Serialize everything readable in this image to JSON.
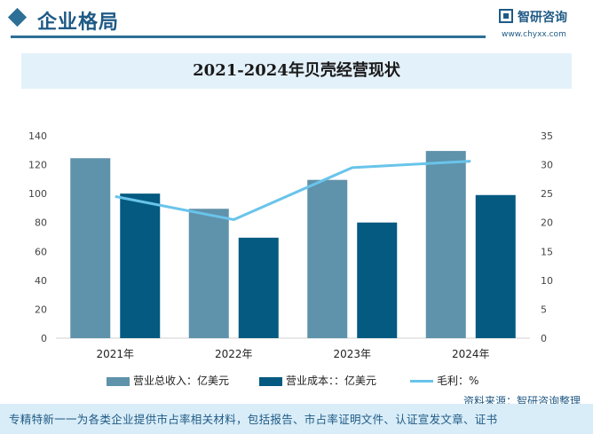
{
  "header": {
    "section_title": "企业格局",
    "logo_name": "智研咨询",
    "logo_url": "www.chyxx.com"
  },
  "chart_data": {
    "type": "bar",
    "title": "2021-2024年贝壳经营现状",
    "categories": [
      "2021年",
      "2022年",
      "2023年",
      "2024年"
    ],
    "series": [
      {
        "name": "营业总收入：亿美元",
        "kind": "bar",
        "axis": "left",
        "values": [
          124.5,
          89.5,
          109.5,
          129.5
        ],
        "color": "#5f92ab"
      },
      {
        "name": "营业成本：：亿美元",
        "kind": "bar",
        "axis": "left",
        "values": [
          100,
          69.5,
          80,
          99
        ],
        "color": "#045a80"
      },
      {
        "name": "毛利：%",
        "kind": "line",
        "axis": "right",
        "values": [
          24.5,
          20.5,
          29.5,
          30.6
        ],
        "color": "#69c4ea"
      }
    ],
    "y_left": {
      "min": 0,
      "max": 140,
      "ticks": [
        0,
        20,
        40,
        60,
        80,
        100,
        120,
        140
      ]
    },
    "y_right": {
      "min": 0,
      "max": 35,
      "ticks": [
        0,
        5,
        10,
        15,
        20,
        25,
        30,
        35
      ]
    },
    "grid": false,
    "legend_position": "bottom"
  },
  "source": "资料来源：智研咨询整理",
  "footer": "专精特新一一为各类企业提供市占率相关材料，包括报告、市占率证明文件、认证宣发文章、证书"
}
